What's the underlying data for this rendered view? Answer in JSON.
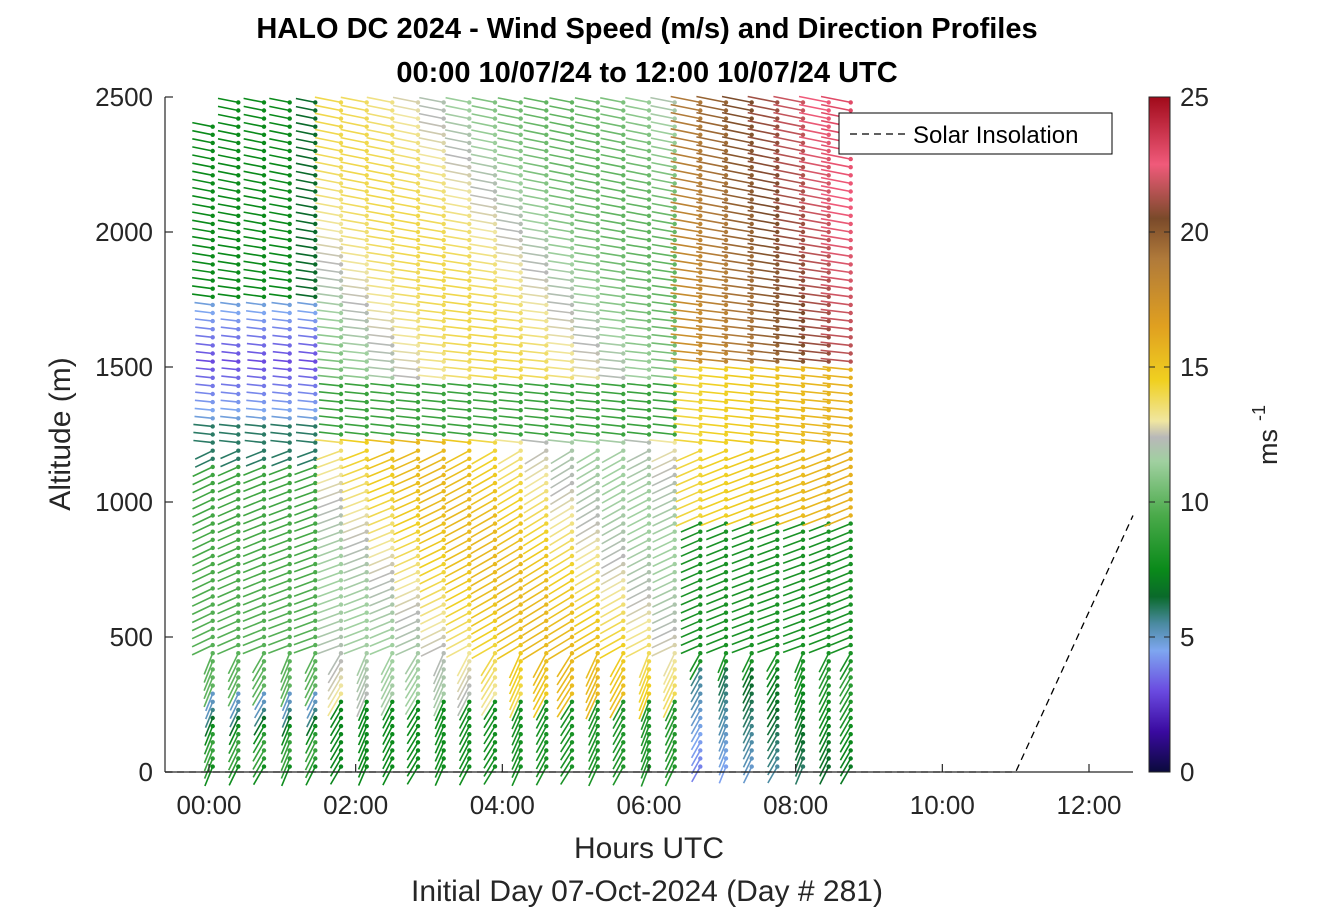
{
  "chart_data": {
    "type": "scatter",
    "title_line1": "HALO DC 2024 - Wind Speed (m/s) and Direction Profiles",
    "title_line2": "00:00 10/07/24 to 12:00 10/07/24  UTC",
    "xlabel": "Hours UTC",
    "xlabel2": "Initial Day 07-Oct-2024 (Day # 281)",
    "ylabel": "Altitude (m)",
    "xlim": [
      -0.6,
      12.6
    ],
    "ylim": [
      0,
      2500
    ],
    "x_ticks": [
      0,
      2,
      4,
      6,
      8,
      10,
      12
    ],
    "x_tick_labels": [
      "00:00",
      "02:00",
      "04:00",
      "06:00",
      "08:00",
      "10:00",
      "12:00"
    ],
    "y_ticks": [
      0,
      500,
      1000,
      1500,
      2000,
      2500
    ],
    "y_tick_labels": [
      "0",
      "500",
      "1000",
      "1500",
      "2000",
      "2500"
    ],
    "colorbar": {
      "label": "ms",
      "label_superscript": "-1",
      "range": [
        0,
        25
      ],
      "ticks": [
        0,
        5,
        10,
        15,
        20,
        25
      ],
      "tick_labels": [
        "0",
        "5",
        "10",
        "15",
        "20",
        "25"
      ],
      "colors": [
        {
          "v": 0,
          "c": "#0a0a3c"
        },
        {
          "v": 1.5,
          "c": "#3a0aa0"
        },
        {
          "v": 3,
          "c": "#6a4ae0"
        },
        {
          "v": 4.5,
          "c": "#7ea6f0"
        },
        {
          "v": 5.5,
          "c": "#4a8aa0"
        },
        {
          "v": 6.5,
          "c": "#0a6a2a"
        },
        {
          "v": 7.5,
          "c": "#0a8a1a"
        },
        {
          "v": 9.5,
          "c": "#4aaa4a"
        },
        {
          "v": 11.5,
          "c": "#a0d0a0"
        },
        {
          "v": 12.4,
          "c": "#b8b8b8"
        },
        {
          "v": 13,
          "c": "#f0e6a0"
        },
        {
          "v": 14.5,
          "c": "#f0d020"
        },
        {
          "v": 16.5,
          "c": "#e0a020"
        },
        {
          "v": 19,
          "c": "#b07a3a"
        },
        {
          "v": 20.5,
          "c": "#7a4a2a"
        },
        {
          "v": 22.5,
          "c": "#f05a7a"
        },
        {
          "v": 25,
          "c": "#a00a1a"
        }
      ]
    },
    "legend": {
      "label": "Solar Insolation",
      "location": "top-right"
    },
    "solar_insolation_line": {
      "x": [
        -0.6,
        11.0,
        12.6
      ],
      "y": [
        0,
        0,
        950
      ]
    },
    "wind_profiles": {
      "times": [
        0.05,
        0.4,
        0.75,
        1.1,
        1.45,
        1.8,
        2.15,
        2.5,
        2.85,
        3.2,
        3.55,
        3.9,
        4.25,
        4.6,
        4.95,
        5.3,
        5.65,
        6.0,
        6.35,
        6.7,
        7.05,
        7.4,
        7.75,
        8.1,
        8.45,
        8.75
      ],
      "altitude_step_m": 30,
      "altitude_max_m": 2500,
      "speed_ms_summary": {
        "00:00-01:30 below 300 m": 8,
        "00:00-01:30 1300-1700 m": 3,
        "00:00-01:30 1800-2300 m": 7,
        "02:00-06:00 300-1200 m": 15,
        "02:00-06:00 1500-2500 m": 14,
        "06:30-07:30 below 400 m": 4,
        "06:30-08:45 500-900 m": 8,
        "07:30-08:45 1500-2500 m": 20
      },
      "max_speed_ms": 23
    }
  }
}
